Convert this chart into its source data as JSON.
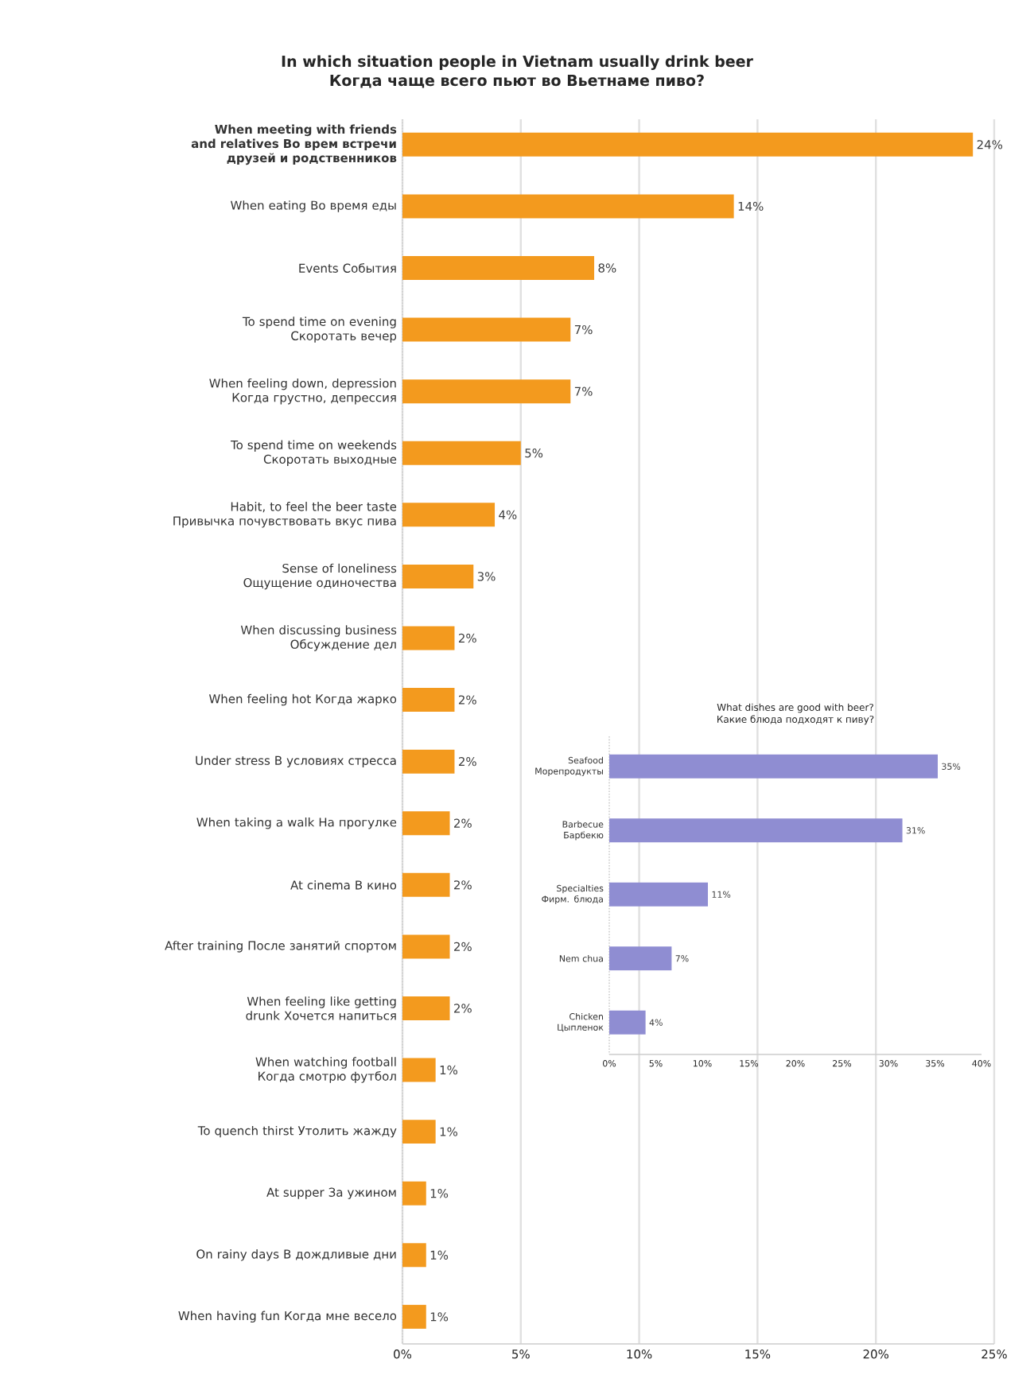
{
  "chart_data": [
    {
      "type": "bar",
      "orientation": "horizontal",
      "title": "In which situation people in Vietnam usually drink beer",
      "subtitle": "Когда чаще всего пьют во Вьетнаме пиво?",
      "categories": [
        "When meeting with friends and relatives Во врем встречи друзей и родственников",
        "When eating Во время еды",
        "Events События",
        "To spend time on evening Скоротать вечер",
        "When feeling down, depression Когда грустно, депрессия",
        "To spend time on weekends Скоротать выходные",
        "Habit, to feel the beer taste Привычка почувствовать вкус пива",
        "Sense of loneliness Ощущение одиночества",
        "When discussing business Обсуждение дел",
        "When feeling hot Когда жарко",
        "Under stress В условиях стресса",
        "When taking a walk На прогулке",
        "At cinema В кино",
        "After training После занятий спортом",
        "When feeling like getting drunk Хочется напиться",
        "When watching football Когда смотрю футбол",
        "To quench thirst Утолить жажду",
        "At supper За ужином",
        "On rainy days В дождливые дни",
        "When having fun Когда мне весело"
      ],
      "values": [
        24.1,
        14,
        8.1,
        7.1,
        7.1,
        5,
        3.9,
        3,
        2.2,
        2.2,
        2.2,
        2,
        2,
        2,
        2,
        1.4,
        1.4,
        1,
        1,
        1
      ],
      "value_labels": [
        "24%",
        "14%",
        "8%",
        "7%",
        "7%",
        "5%",
        "4%",
        "3%",
        "2%",
        "2%",
        "2%",
        "2%",
        "2%",
        "2%",
        "2%",
        "1%",
        "1%",
        "1%",
        "1%",
        "1%"
      ],
      "color": "#f39a1e",
      "xlim": [
        0,
        25
      ],
      "xticks": [
        {
          "value": 0,
          "label": "0%"
        },
        {
          "value": 5,
          "label": "5%"
        },
        {
          "value": 10,
          "label": "10%"
        },
        {
          "value": 15,
          "label": "15%"
        },
        {
          "value": 20,
          "label": "20%"
        },
        {
          "value": 25,
          "label": "25%"
        }
      ],
      "grid": "x"
    },
    {
      "type": "bar",
      "orientation": "horizontal",
      "title": "What dishes are good with beer?",
      "subtitle": "Какие блюда подходят к пиву?",
      "categories": [
        "Seafood Морепродукты",
        "Barbecue Барбекю",
        "Specialties Фирм. блюда",
        "Nem chua",
        "Chicken Цыпленок"
      ],
      "values": [
        35.3,
        31.5,
        10.6,
        6.7,
        3.9
      ],
      "value_labels": [
        "35%",
        "31%",
        "11%",
        "7%",
        "4%"
      ],
      "color": "#8f8dd2",
      "xlim": [
        0,
        40
      ],
      "xticks": [
        {
          "value": 0,
          "label": "0%"
        },
        {
          "value": 5,
          "label": "5%"
        },
        {
          "value": 10,
          "label": "10%"
        },
        {
          "value": 15,
          "label": "15%"
        },
        {
          "value": 20,
          "label": "20%"
        },
        {
          "value": 25,
          "label": "25%"
        },
        {
          "value": 30,
          "label": "30%"
        },
        {
          "value": 35,
          "label": "35%"
        },
        {
          "value": 40,
          "label": "40%"
        }
      ]
    }
  ]
}
